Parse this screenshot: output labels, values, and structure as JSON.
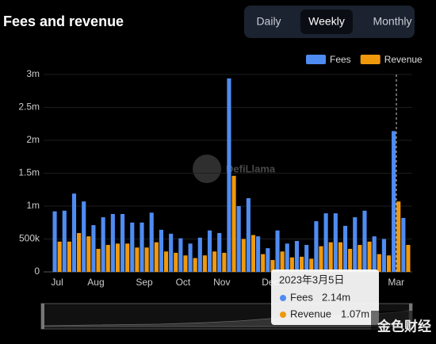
{
  "chart_data": {
    "type": "bar",
    "title": "Fees and revenue",
    "toggle": [
      "Daily",
      "Weekly",
      "Monthly"
    ],
    "selected": "Weekly",
    "watermark": "DefiLlama",
    "corner_mark": "金色财经",
    "categories": [
      "Jul",
      null,
      null,
      null,
      "Aug",
      null,
      null,
      null,
      null,
      "Sep",
      null,
      null,
      null,
      "Oct",
      null,
      null,
      null,
      "Nov",
      null,
      null,
      null,
      null,
      "Dec",
      null,
      null,
      null,
      null,
      null,
      null,
      null,
      null,
      null,
      null,
      null,
      null,
      "Mar",
      null
    ],
    "series": [
      {
        "name": "Fees",
        "color": "#4f8cf2",
        "values": [
          920000,
          930000,
          1190000,
          1070000,
          710000,
          830000,
          880000,
          880000,
          750000,
          750000,
          900000,
          640000,
          580000,
          510000,
          430000,
          520000,
          630000,
          590000,
          2940000,
          1000000,
          1120000,
          540000,
          360000,
          630000,
          430000,
          470000,
          410000,
          770000,
          890000,
          890000,
          700000,
          830000,
          930000,
          540000,
          500000,
          2140000,
          820000
        ]
      },
      {
        "name": "Revenue",
        "color": "#f0990d",
        "values": [
          460000,
          460000,
          590000,
          540000,
          350000,
          410000,
          430000,
          430000,
          370000,
          370000,
          450000,
          310000,
          290000,
          250000,
          210000,
          250000,
          310000,
          290000,
          1460000,
          500000,
          560000,
          270000,
          180000,
          310000,
          220000,
          230000,
          200000,
          390000,
          450000,
          450000,
          350000,
          410000,
          460000,
          270000,
          250000,
          1070000,
          410000
        ]
      }
    ],
    "ylim": [
      0,
      3000000
    ],
    "yticks": [
      0,
      {
        "value": 500000,
        "label": "500k"
      },
      {
        "value": 1000000,
        "label": "1m"
      },
      {
        "value": 1500000,
        "label": "1.5m"
      },
      {
        "value": 2000000,
        "label": "2m"
      },
      {
        "value": 2500000,
        "label": "2.5m"
      },
      {
        "value": 3000000,
        "label": "3m"
      }
    ],
    "grid": true,
    "legend": "top-right",
    "tooltip": {
      "title": "2023年3月5日",
      "fees_label": "2.14m",
      "revenue_label": "1.07m"
    }
  }
}
